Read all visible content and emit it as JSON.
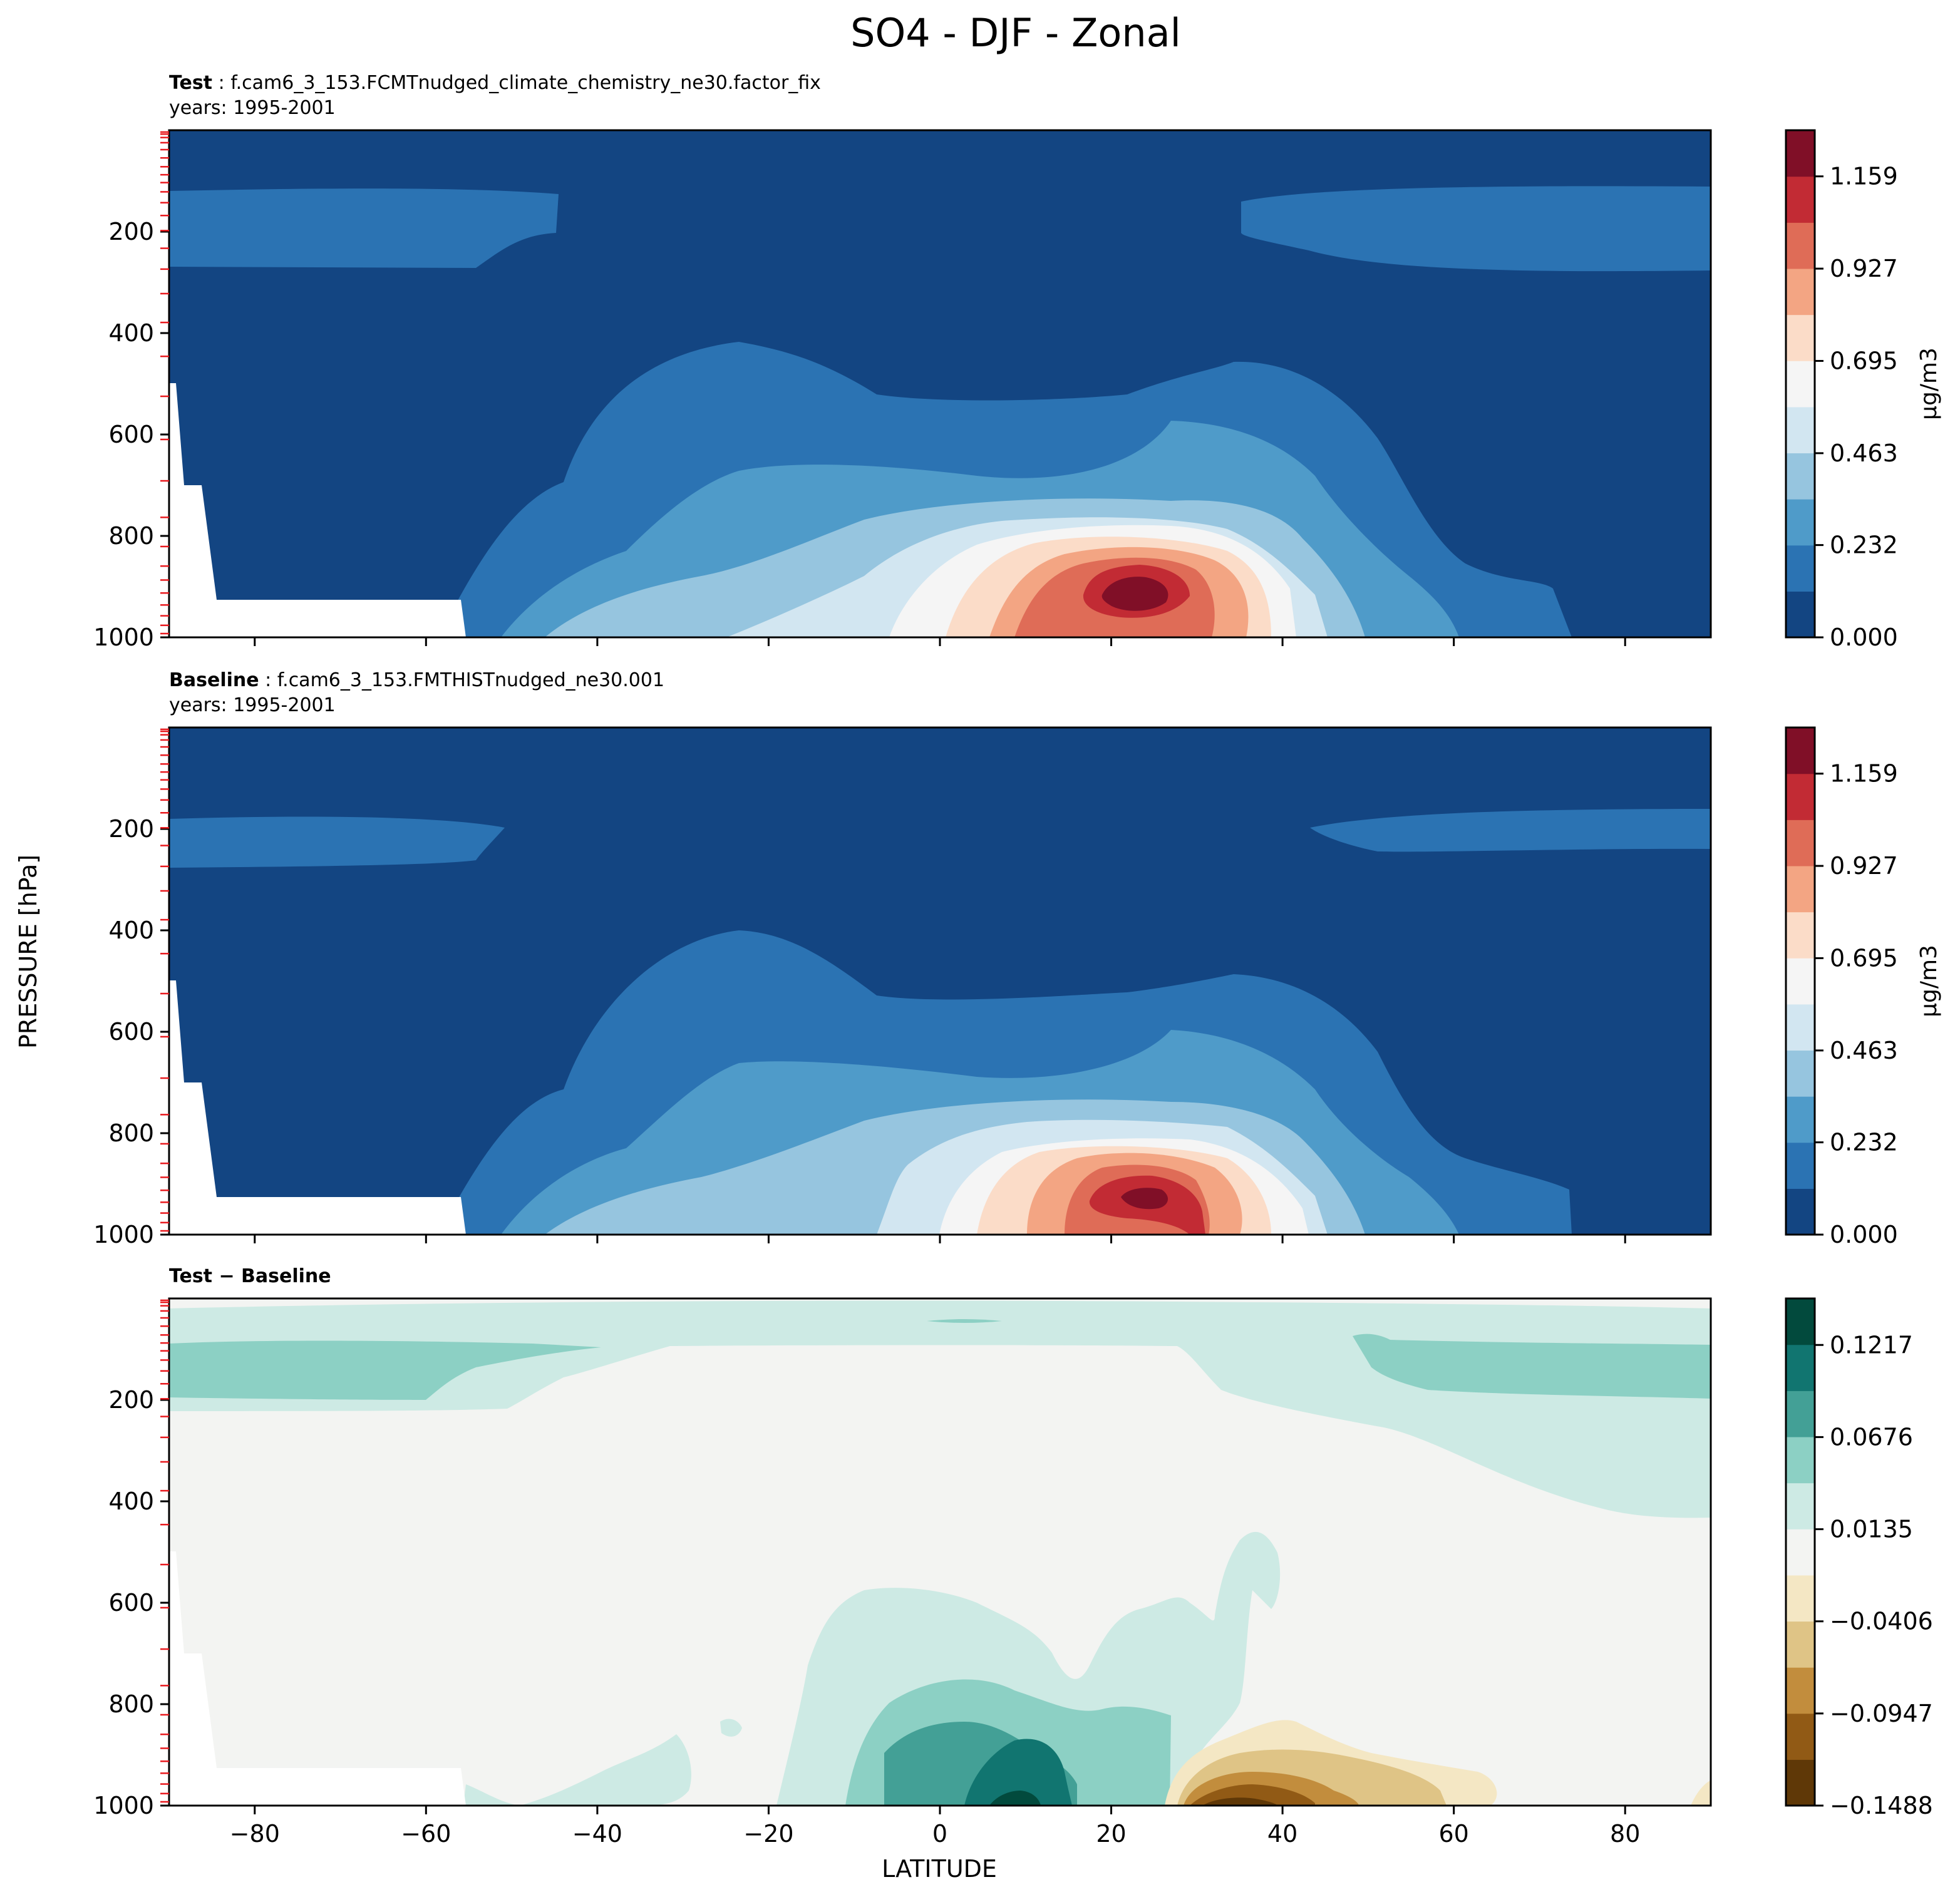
{
  "figure": {
    "title": "SO4 - DJF - Zonal",
    "ylabel": "PRESSURE [hPa]",
    "xlabel": "LATITUDE"
  },
  "panels": [
    {
      "id": "test",
      "label_bold": "Test",
      "label_rest": " : f.cam6_3_153.FCMTnudged_climate_chemistry_ne30.factor_fix",
      "years": "years: 1995-2001",
      "cbar_label": "µg/m3",
      "cbar_ticks": [
        "1.159",
        "0.927",
        "0.695",
        "0.463",
        "0.232",
        "0.000"
      ]
    },
    {
      "id": "baseline",
      "label_bold": "Baseline",
      "label_rest": " : f.cam6_3_153.FMTHISTnudged_ne30.001",
      "years": "years: 1995-2001",
      "cbar_label": "µg/m3",
      "cbar_ticks": [
        "1.159",
        "0.927",
        "0.695",
        "0.463",
        "0.232",
        "0.000"
      ]
    },
    {
      "id": "diff",
      "label_bold": "Test − Baseline",
      "label_rest": "",
      "years": "",
      "cbar_label": "",
      "cbar_ticks": [
        "0.1217",
        "0.0676",
        "0.0135",
        "−0.0406",
        "−0.0947",
        "−0.1488"
      ]
    }
  ],
  "chart_data": [
    {
      "type": "heatmap",
      "title": "Test : f.cam6_3_153.FCMTnudged_climate_chemistry_ne30.factor_fix",
      "x_ticks": [
        "−80",
        "−60",
        "−40",
        "−20",
        "0",
        "20",
        "40",
        "60",
        "80"
      ],
      "y_ticks": [
        "200",
        "400",
        "600",
        "800",
        "1000"
      ],
      "xlim": [
        -90,
        90
      ],
      "ylim": [
        1000,
        0
      ],
      "colorbar": {
        "label": "µg/m3",
        "min": 0.0,
        "max": 1.275,
        "levels": 11,
        "ticks": [
          0.0,
          0.232,
          0.463,
          0.695,
          0.927,
          1.159
        ]
      },
      "colors": [
        "#134582",
        "#2b73b3",
        "#4f9bc9",
        "#96c5df",
        "#d2e6f1",
        "#f5f5f5",
        "#fbdcc8",
        "#f3a583",
        "#df6c57",
        "#c22b34",
        "#800f27"
      ]
    },
    {
      "type": "heatmap",
      "title": "Baseline : f.cam6_3_153.FMTHISTnudged_ne30.001",
      "x_ticks": [
        "−80",
        "−60",
        "−40",
        "−20",
        "0",
        "20",
        "40",
        "60",
        "80"
      ],
      "y_ticks": [
        "200",
        "400",
        "600",
        "800",
        "1000"
      ],
      "xlim": [
        -90,
        90
      ],
      "ylim": [
        1000,
        0
      ],
      "colorbar": {
        "label": "µg/m3",
        "min": 0.0,
        "max": 1.275,
        "levels": 11,
        "ticks": [
          0.0,
          0.232,
          0.463,
          0.695,
          0.927,
          1.159
        ]
      },
      "colors": [
        "#134582",
        "#2b73b3",
        "#4f9bc9",
        "#96c5df",
        "#d2e6f1",
        "#f5f5f5",
        "#fbdcc8",
        "#f3a583",
        "#df6c57",
        "#c22b34",
        "#800f27"
      ]
    },
    {
      "type": "heatmap",
      "title": "Test − Baseline",
      "x_ticks": [
        "−80",
        "−60",
        "−40",
        "−20",
        "0",
        "20",
        "40",
        "60",
        "80"
      ],
      "y_ticks": [
        "200",
        "400",
        "600",
        "800",
        "1000"
      ],
      "xlim": [
        -90,
        90
      ],
      "ylim": [
        1000,
        0
      ],
      "colorbar": {
        "min": -0.1488,
        "max": 0.149,
        "levels": 11,
        "ticks": [
          -0.1488,
          -0.0947,
          -0.0406,
          0.0135,
          0.0676,
          0.1217
        ]
      },
      "colors": [
        "#5f3807",
        "#915a15",
        "#c28d3d",
        "#dfc486",
        "#f4e7c4",
        "#f3f4f2",
        "#cdeae4",
        "#8cd0c4",
        "#43a096",
        "#117570",
        "#024a3d"
      ]
    }
  ]
}
